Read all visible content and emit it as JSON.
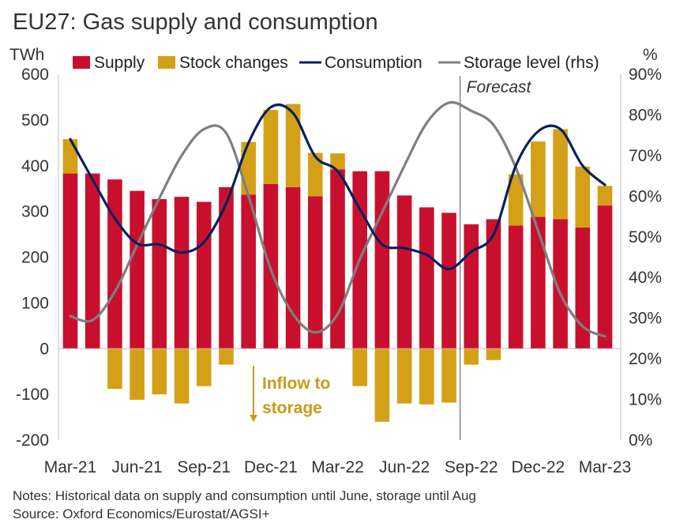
{
  "title": "EU27: Gas supply and consumption",
  "notes": "Notes: Historical data on supply and consumption until June, storage until Aug",
  "source": "Source: Oxford Economics/Eurostat/AGSI+",
  "colors": {
    "supply": "#c8102e",
    "stock": "#d4a017",
    "consumption": "#0a1f5c",
    "storage": "#7f7f7f",
    "annotation": "#c99a16"
  },
  "chart_data": {
    "type": "bar",
    "left_axis_unit": "TWh",
    "right_axis_unit": "%",
    "ylim_left": [
      -200,
      600
    ],
    "ylim_right": [
      0,
      90
    ],
    "left_ticks": [
      "600",
      "500",
      "400",
      "300",
      "200",
      "100",
      "0",
      "-100",
      "-200"
    ],
    "right_ticks": [
      "90%",
      "80%",
      "70%",
      "60%",
      "50%",
      "40%",
      "30%",
      "20%",
      "10%",
      "0%"
    ],
    "x_tick_labels": [
      "Mar-21",
      "Jun-21",
      "Sep-21",
      "Dec-21",
      "Mar-22",
      "Jun-22",
      "Sep-22",
      "Dec-22",
      "Mar-23"
    ],
    "categories": [
      "Mar-21",
      "Apr-21",
      "May-21",
      "Jun-21",
      "Jul-21",
      "Aug-21",
      "Sep-21",
      "Oct-21",
      "Nov-21",
      "Dec-21",
      "Jan-22",
      "Feb-22",
      "Mar-22",
      "Apr-22",
      "May-22",
      "Jun-22",
      "Jul-22",
      "Aug-22",
      "Sep-22",
      "Oct-22",
      "Nov-22",
      "Dec-22",
      "Jan-23",
      "Feb-23",
      "Mar-23"
    ],
    "series": [
      {
        "name": "Supply",
        "values": [
          383,
          383,
          370,
          345,
          327,
          332,
          321,
          353,
          337,
          360,
          353,
          333,
          392,
          388,
          388,
          335,
          309,
          297,
          272,
          283,
          269,
          288,
          283,
          265,
          313
        ]
      },
      {
        "name": "Stock changes",
        "values": [
          75,
          0,
          -88,
          -112,
          -100,
          -120,
          -82,
          -35,
          115,
          162,
          182,
          95,
          35,
          -82,
          -160,
          -120,
          -122,
          -118,
          -35,
          -25,
          112,
          165,
          197,
          133,
          43
        ]
      },
      {
        "name": "Consumption",
        "values": [
          458,
          370,
          285,
          230,
          228,
          210,
          233,
          318,
          450,
          528,
          515,
          420,
          388,
          305,
          228,
          220,
          205,
          174,
          212,
          250,
          400,
          475,
          480,
          400,
          358
        ]
      },
      {
        "name": "Storage level (rhs)",
        "values": [
          30.5,
          29.5,
          36.5,
          48.0,
          59.5,
          70.0,
          76.5,
          75.5,
          60.0,
          42.0,
          31.0,
          26.5,
          31.0,
          44.5,
          56.0,
          67.5,
          78.0,
          83.0,
          81.0,
          77.5,
          67.0,
          51.5,
          36.0,
          28.0,
          25.5
        ]
      }
    ],
    "forecast_label": "Forecast",
    "forecast_start": "Sep-22",
    "annotation": "Inflow to storage",
    "annotation_lines": [
      "Inflow to",
      "storage"
    ],
    "legend_position": "top",
    "grid": false
  }
}
